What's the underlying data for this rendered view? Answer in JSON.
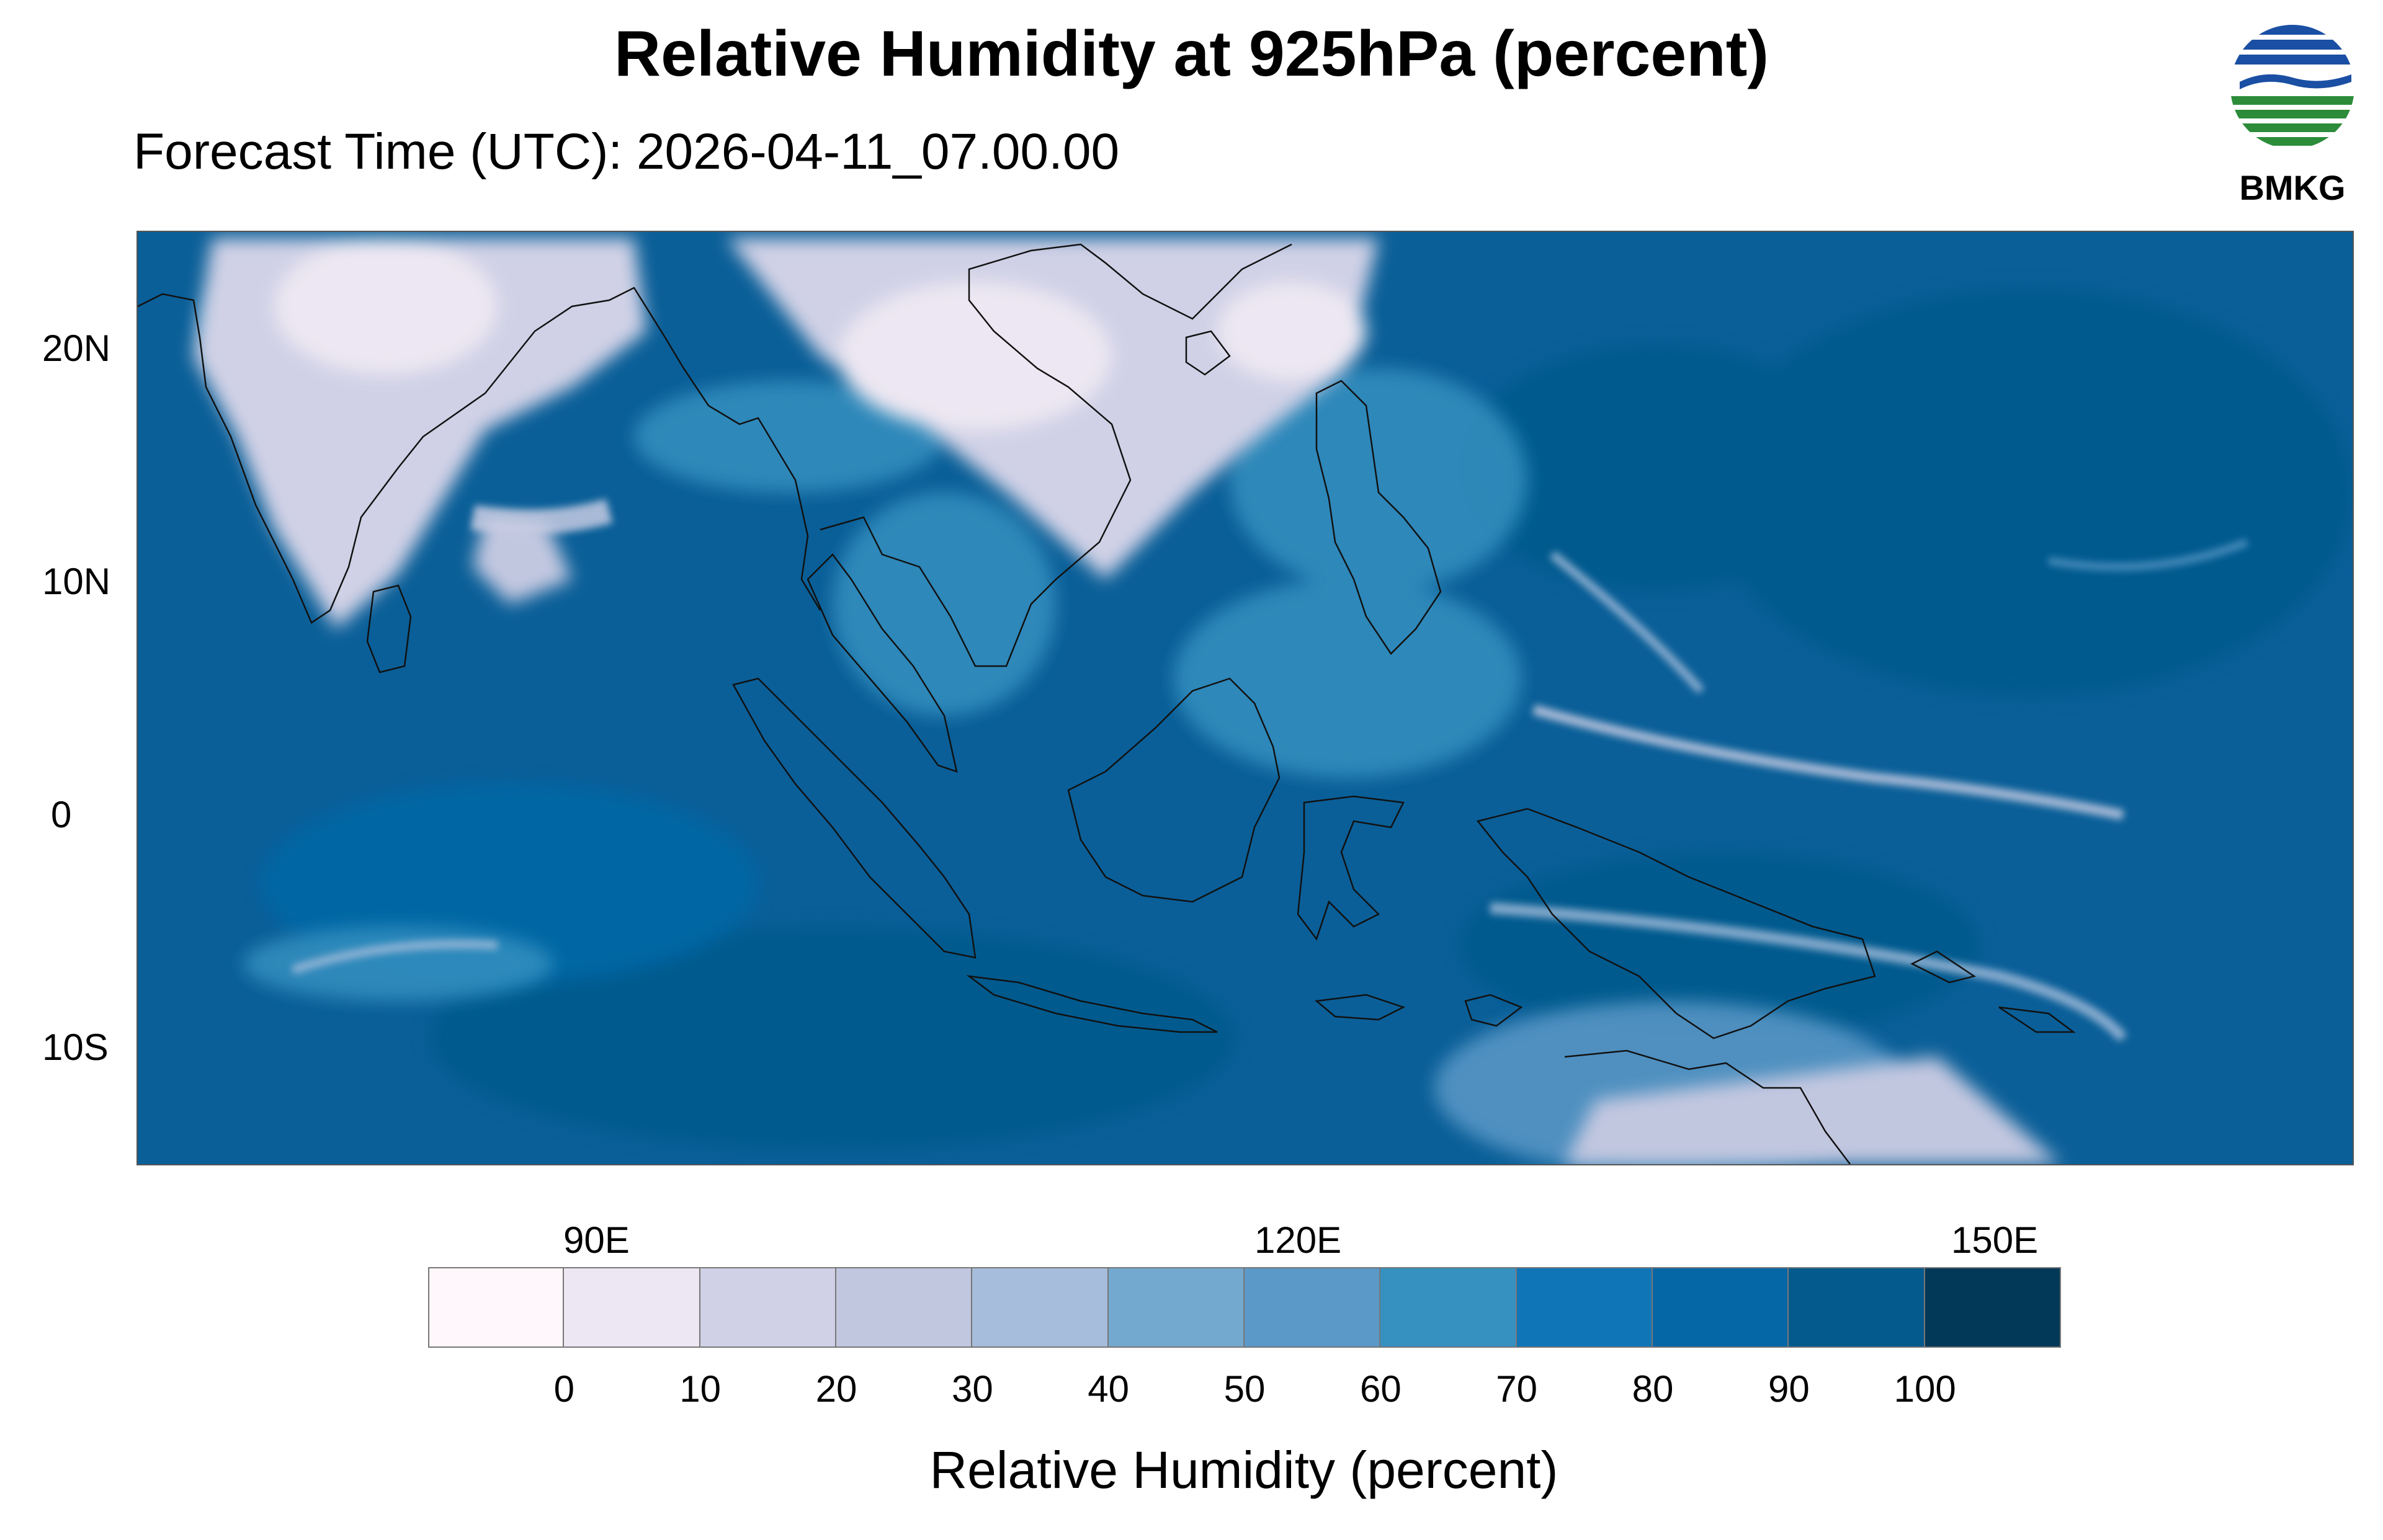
{
  "title": "Relative Humidity at 925hPa (percent)",
  "subtitle": "Forecast Time (UTC): 2026-04-11_07.00.00",
  "logo": {
    "text": "BMKG",
    "icon": "bmkg-logo-icon",
    "colors": [
      "#1a4fa3",
      "#2c8c3a"
    ]
  },
  "map": {
    "projection": "equirectangular",
    "lon_range": [
      70,
      165
    ],
    "lat_range": [
      -15,
      25
    ],
    "ocean_color": "#0a5f98",
    "lat_ticks": [
      {
        "label": "20N",
        "value": 20
      },
      {
        "label": "10N",
        "value": 10
      },
      {
        "label": "0",
        "value": 0
      },
      {
        "label": "10S",
        "value": -10
      }
    ],
    "lon_ticks": [
      {
        "label": "90E",
        "value": 90
      },
      {
        "label": "120E",
        "value": 120
      },
      {
        "label": "150E",
        "value": 150
      }
    ]
  },
  "colorbar": {
    "label": "Relative Humidity (percent)",
    "ticks": [
      "0",
      "10",
      "20",
      "30",
      "40",
      "50",
      "60",
      "70",
      "80",
      "90",
      "100"
    ],
    "colors": [
      "#fff7fb",
      "#ece7f2",
      "#d0d1e6",
      "#c2c7e0",
      "#a6bddb",
      "#74a9cf",
      "#5b99c8",
      "#3690c0",
      "#0f75b6",
      "#0567a6",
      "#045a8d",
      "#023858"
    ]
  }
}
